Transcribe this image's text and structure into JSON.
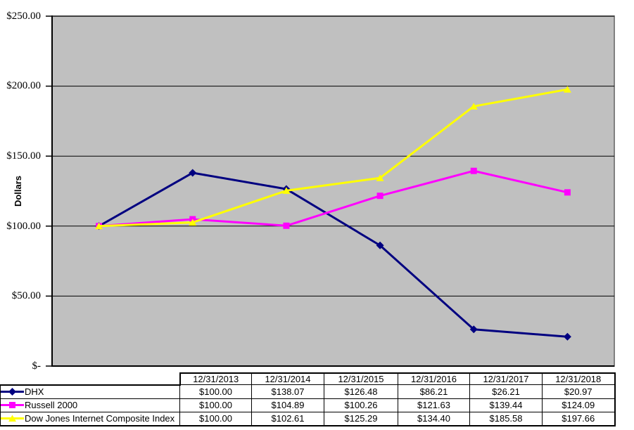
{
  "chart_data": {
    "type": "line",
    "title": "",
    "xlabel": "",
    "ylabel": "Dollars",
    "ylim": [
      0,
      250
    ],
    "ytick_step": 50,
    "ytick_labels": [
      "$250.00",
      "$200.00",
      "$150.00",
      "$100.00",
      "$50.00",
      "$-"
    ],
    "grid": true,
    "plot_bg": "#c0c0c0",
    "plot_border": "#808080",
    "gridline_color": "#000000",
    "legend_position": "table-below",
    "categories": [
      "12/31/2013",
      "12/31/2014",
      "12/31/2015",
      "12/31/2016",
      "12/31/2017",
      "12/31/2018"
    ],
    "series": [
      {
        "name": "DHX",
        "color": "#000080",
        "marker": "diamond",
        "values": [
          100.0,
          138.07,
          126.48,
          86.21,
          26.21,
          20.97
        ]
      },
      {
        "name": "Russell 2000",
        "color": "#ff00ff",
        "marker": "square",
        "values": [
          100.0,
          104.89,
          100.26,
          121.63,
          139.44,
          124.09
        ]
      },
      {
        "name": "Dow Jones Internet Composite Index",
        "color": "#ffff00",
        "marker": "triangle",
        "values": [
          100.0,
          102.61,
          125.29,
          134.4,
          185.58,
          197.66
        ]
      }
    ]
  },
  "table": {
    "headers": [
      "12/31/2013",
      "12/31/2014",
      "12/31/2015",
      "12/31/2016",
      "12/31/2017",
      "12/31/2018"
    ],
    "rows": [
      {
        "label": "DHX",
        "values": [
          "$100.00",
          "$138.07",
          "$126.48",
          "$86.21",
          "$26.21",
          "$20.97"
        ]
      },
      {
        "label": "Russell 2000",
        "values": [
          "$100.00",
          "$104.89",
          "$100.26",
          "$121.63",
          "$139.44",
          "$124.09"
        ]
      },
      {
        "label": "Dow Jones Internet Composite Index",
        "values": [
          "$100.00",
          "$102.61",
          "$125.29",
          "$134.40",
          "$185.58",
          "$197.66"
        ]
      }
    ]
  }
}
